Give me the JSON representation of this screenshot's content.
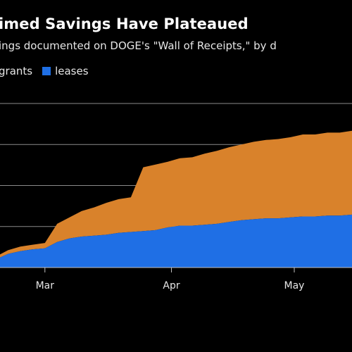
{
  "chart_data": {
    "type": "area",
    "stacked": true,
    "title": "imed Savings Have Plateaued",
    "subtitle": "ings documented on DOGE's \"Wall of Receipts,\" by d",
    "x_ticks": [
      "Mar",
      "Apr",
      "May"
    ],
    "x": [
      "Feb 18",
      "Feb 20",
      "Feb 23",
      "Feb 26",
      "Mar 1",
      "Mar 4",
      "Mar 7",
      "Mar 10",
      "Mar 13",
      "Mar 16",
      "Mar 19",
      "Mar 22",
      "Mar 25",
      "Mar 28",
      "Mar 31",
      "Apr 3",
      "Apr 6",
      "Apr 9",
      "Apr 12",
      "Apr 15",
      "Apr 18",
      "Apr 21",
      "Apr 24",
      "Apr 27",
      "Apr 30",
      "May 3",
      "May 6",
      "May 9",
      "May 12",
      "May 14"
    ],
    "series": [
      {
        "name": "leases",
        "color": "#1f6fe5",
        "values": [
          9,
          15,
          18,
          20,
          21,
          28,
          32,
          34,
          35,
          36,
          38,
          39,
          40,
          41,
          44,
          46,
          46,
          47,
          48,
          50,
          52,
          53,
          54,
          54,
          55,
          56,
          56,
          57,
          57,
          58
        ]
      },
      {
        "name": "grants",
        "color": "#d9822b",
        "values": [
          3,
          4,
          5,
          5,
          6,
          20,
          23,
          28,
          31,
          35,
          37,
          38,
          70,
          72,
          72,
          74,
          75,
          78,
          80,
          82,
          83,
          85,
          86,
          87,
          88,
          90,
          90,
          91,
          91,
          92
        ]
      }
    ],
    "legend": [
      "grants",
      "leases"
    ],
    "legend_position": "top-left",
    "ylim": [
      0,
      180
    ],
    "grid": true,
    "grid_values": [
      45,
      90,
      135,
      180
    ],
    "background": "#000000"
  }
}
